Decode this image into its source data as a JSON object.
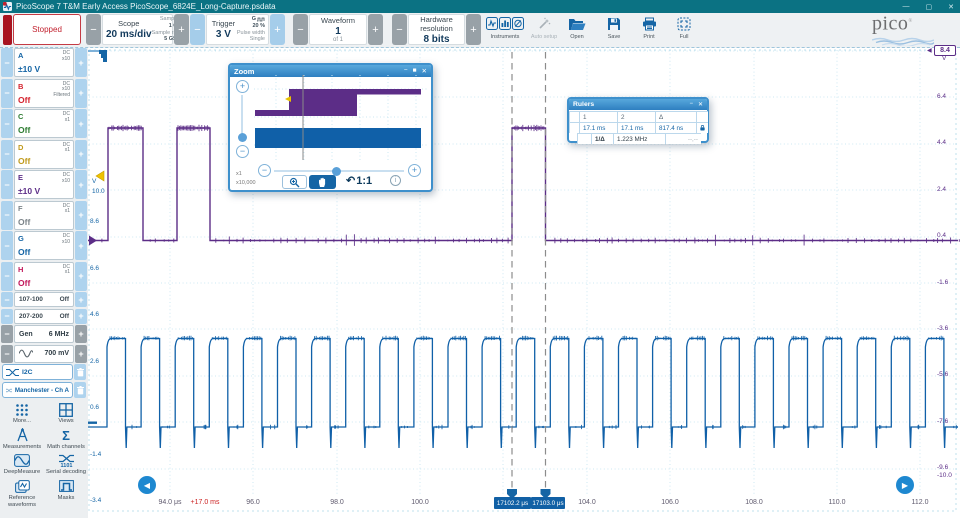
{
  "window": {
    "title": "PicoScope 7 T&M Early Access PicoScope_6824E_Long-Capture.psdata",
    "controls": {
      "minimize": "—",
      "maximize": "▢",
      "close": "✕"
    }
  },
  "glyphs": {
    "minus": "−",
    "plus": "+",
    "left_arrow": "◀",
    "right_arrow": "▶",
    "undo": "↶",
    "info": "i"
  },
  "toolbar": {
    "stopped_label": "Stopped",
    "scope": {
      "title": "Scope",
      "value": "20 ms/div",
      "samples_label": "Samples",
      "samples": "1 GS",
      "rate_label": "Sample rate",
      "rate": "5 GS/s"
    },
    "trigger": {
      "title": "Trigger",
      "value": "3 V",
      "channel": "G",
      "pre": "20 %",
      "mode": "Pulse width",
      "type": "Single"
    },
    "waveform": {
      "title": "Waveform",
      "value": "1",
      "of": "of 1"
    },
    "hardware": {
      "title": "Hardware",
      "title2": "resolution",
      "value": "8 bits"
    },
    "buttons": {
      "instruments": "Instruments",
      "auto_setup": "Auto setup",
      "open": "Open",
      "save": "Save",
      "print": "Print",
      "full": "Full"
    },
    "logo": {
      "name": "pico",
      "reg": "®",
      "sub": "Technology"
    }
  },
  "sidebar": {
    "channels": [
      {
        "id": "A",
        "value": "±10 V",
        "tags": [
          "DC",
          "x10"
        ],
        "color": "#1565a5"
      },
      {
        "id": "B",
        "value": "Off",
        "tags": [
          "DC",
          "x10",
          "Filtered"
        ],
        "color": "#d5232e"
      },
      {
        "id": "C",
        "value": "Off",
        "tags": [
          "DC",
          "x1"
        ],
        "color": "#2e7d32"
      },
      {
        "id": "D",
        "value": "Off",
        "tags": [
          "DC",
          "x1"
        ],
        "color": "#c09a1c"
      },
      {
        "id": "E",
        "value": "±10 V",
        "tags": [
          "DC",
          "x10"
        ],
        "color": "#5c2d87"
      },
      {
        "id": "F",
        "value": "Off",
        "tags": [
          "DC",
          "x1"
        ],
        "color": "#7c8489"
      },
      {
        "id": "G",
        "value": "Off",
        "tags": [
          "DC",
          "x10"
        ],
        "color": "#1565a5"
      },
      {
        "id": "H",
        "value": "Off",
        "tags": [
          "DC",
          "x1"
        ],
        "color": "#c2185b"
      }
    ],
    "digital": [
      {
        "label": "107-100",
        "value": "Off"
      },
      {
        "label": "207-200",
        "value": "Off"
      }
    ],
    "gen": {
      "label": "Gen",
      "frequency": "6 MHz",
      "amplitude": "700 mV"
    },
    "decoders": [
      {
        "label": "I2C"
      },
      {
        "label": "Manchester - Ch A"
      }
    ],
    "tools": [
      {
        "label": "More...",
        "icon": "more-icon"
      },
      {
        "label": "Views",
        "icon": "views-icon"
      },
      {
        "label": "Measurements",
        "icon": "measurements-icon"
      },
      {
        "label": "Math channels",
        "icon": "math-channels-icon"
      },
      {
        "label": "DeepMeasure",
        "icon": "deepmeasure-icon"
      },
      {
        "label": "Serial decoding",
        "icon": "serial-decoding-icon",
        "badge": "1101"
      },
      {
        "label": "Reference waveforms",
        "icon": "reference-waveforms-icon"
      },
      {
        "label": "Masks",
        "icon": "masks-icon"
      }
    ]
  },
  "zoom_window": {
    "title": "Zoom",
    "scale_top": "x1",
    "scale_bottom": "x10,000",
    "reset_label": "1:1"
  },
  "rulers_window": {
    "title": "Rulers",
    "headers": [
      "1",
      "2",
      "Δ"
    ],
    "values": [
      "17.1 ms",
      "17.1 ms",
      "817.4 ns"
    ],
    "inverse_label": "1/Δ",
    "inverse_value": "1.223 MHz",
    "phase_placeholder": "--,--"
  },
  "plot": {
    "left_axis": {
      "unit": "V",
      "top": "10.0",
      "labels": [
        "8.6",
        "6.6",
        "4.6",
        "2.6",
        "0.6",
        "-1.4",
        "-3.4"
      ]
    },
    "right_axis": {
      "top": "8.4",
      "unit": "V",
      "labels": [
        "6.4",
        "4.4",
        "2.4",
        "0.4",
        "-1.6",
        "-3.6",
        "-5.6",
        "-7.6",
        "-9.6"
      ],
      "end": "-10.0"
    },
    "time_axis": {
      "offset": "+17.0 ms",
      "labels": [
        "94.0 μs",
        "96.0",
        "98.0",
        "100.0",
        "104.0",
        "106.0",
        "108.0",
        "110.0",
        "112.0"
      ]
    },
    "ruler_labels": [
      "17102.2 μs",
      "17103.0 μs"
    ]
  },
  "chart_data": {
    "type": "line",
    "x_units": "μs",
    "y_units": "V",
    "x_range_us": [
      17092.1,
      17112.9
    ],
    "time_offset_ms": 17.0,
    "series": [
      {
        "name": "Channel E",
        "color": "#5c2d87",
        "high_v": 5.1,
        "low_v": 0.3,
        "pulses_us": [
          [
            17092.5,
            17093.4
          ],
          [
            17094.2,
            17095.0
          ],
          [
            17102.2,
            17103.0
          ]
        ],
        "axis_range_v": [
          -10.0,
          8.4
        ]
      },
      {
        "name": "Channel A",
        "color": "#1060a8",
        "high_v": 4.2,
        "low_v": 0.1,
        "undershoot_v": -0.9,
        "period_ns": 817.4,
        "frequency_mhz": 1.223,
        "duty": 0.55,
        "axis_range_v": [
          -3.4,
          10.0
        ]
      }
    ],
    "rulers_us": [
      17102.2,
      17103.0
    ],
    "delta_ns": 817.4,
    "grid": true
  }
}
